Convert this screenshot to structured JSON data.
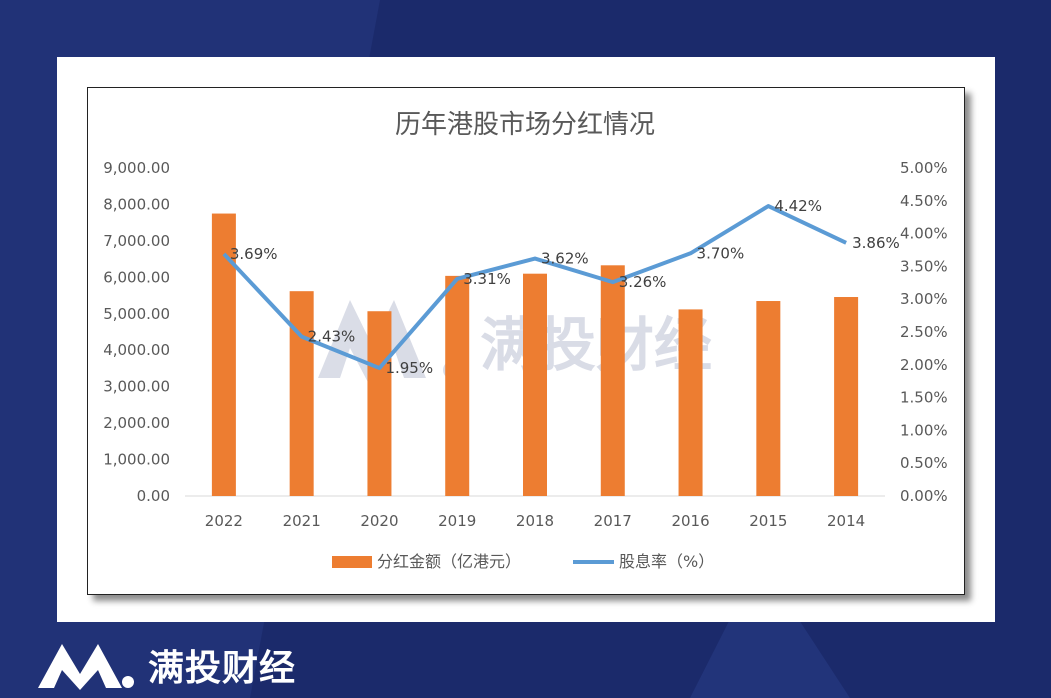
{
  "chart_data": {
    "type": "bar",
    "title": "历年港股市场分红情况",
    "categories": [
      "2022",
      "2021",
      "2020",
      "2019",
      "2018",
      "2017",
      "2016",
      "2015",
      "2014"
    ],
    "series": [
      {
        "name": "分红金额（亿港元）",
        "type": "bar",
        "axis": "left",
        "color": "#ed7d31",
        "values": [
          7750,
          5620,
          5070,
          6040,
          6100,
          6330,
          5120,
          5350,
          5460
        ]
      },
      {
        "name": "股息率（%）",
        "type": "line",
        "axis": "right",
        "color": "#5b9bd5",
        "values": [
          3.69,
          2.43,
          1.95,
          3.31,
          3.62,
          3.26,
          3.7,
          4.42,
          3.86
        ],
        "labels": [
          "3.69%",
          "2.43%",
          "1.95%",
          "3.31%",
          "3.62%",
          "3.26%",
          "3.70%",
          "4.42%",
          "3.86%"
        ]
      }
    ],
    "y_left": {
      "range": [
        0,
        9000
      ],
      "ticks": [
        "0.00",
        "1,000.00",
        "2,000.00",
        "3,000.00",
        "4,000.00",
        "5,000.00",
        "6,000.00",
        "7,000.00",
        "8,000.00",
        "9,000.00"
      ]
    },
    "y_right": {
      "range": [
        0,
        5
      ],
      "ticks": [
        "0.00%",
        "0.50%",
        "1.00%",
        "1.50%",
        "2.00%",
        "2.50%",
        "3.00%",
        "3.50%",
        "4.00%",
        "4.50%",
        "5.00%"
      ]
    },
    "legend_position": "bottom",
    "grid": false
  },
  "watermark": {
    "text": "满投财经"
  },
  "footer": {
    "brand": "满投财经"
  }
}
